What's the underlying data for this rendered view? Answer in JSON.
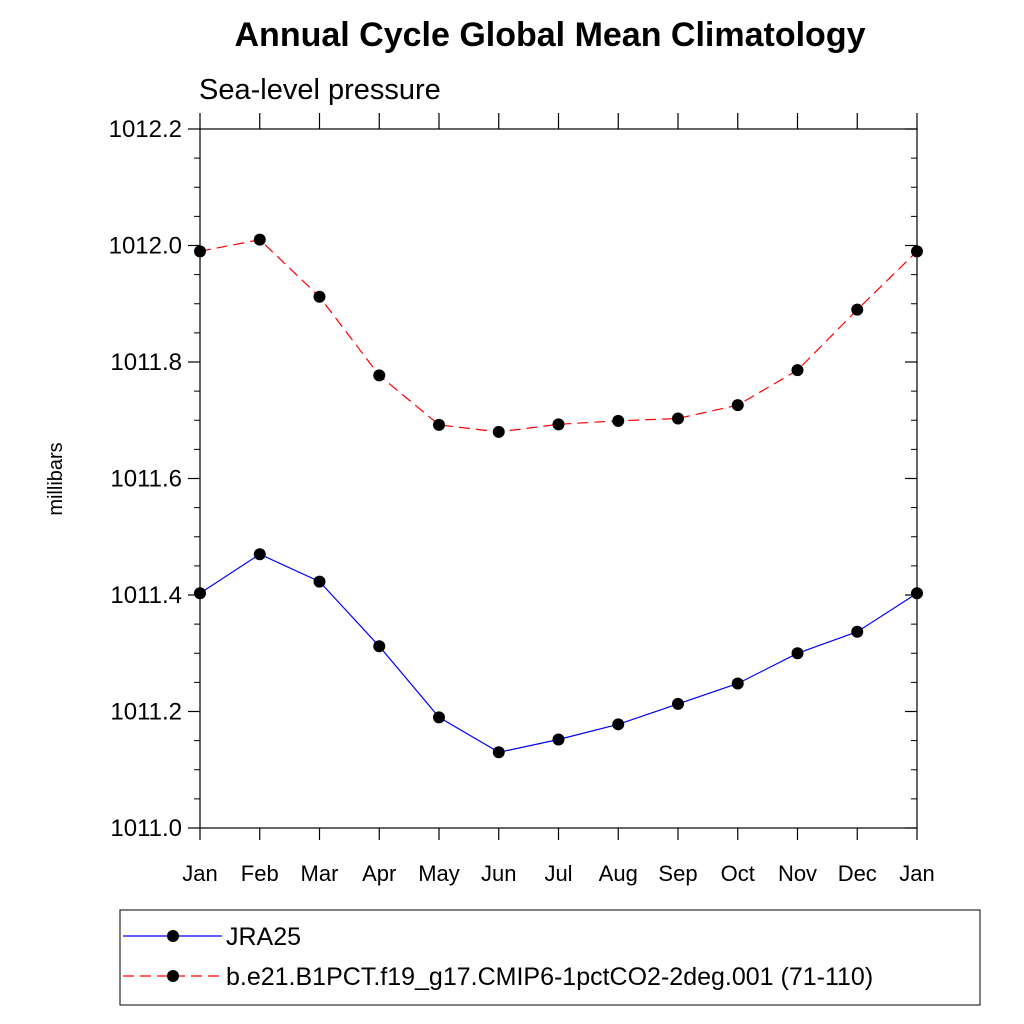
{
  "chart_data": {
    "type": "line",
    "title": "Annual Cycle Global Mean Climatology",
    "subtitle": "Sea-level pressure",
    "xlabel": "",
    "ylabel": "millibars",
    "categories": [
      "Jan",
      "Feb",
      "Mar",
      "Apr",
      "May",
      "Jun",
      "Jul",
      "Aug",
      "Sep",
      "Oct",
      "Nov",
      "Dec",
      "Jan"
    ],
    "ylim": [
      1011.0,
      1012.2
    ],
    "yticks": [
      "1011.0",
      "1011.2",
      "1011.4",
      "1011.6",
      "1011.8",
      "1012.0",
      "1012.2"
    ],
    "grid": false,
    "legend_position": "bottom",
    "series": [
      {
        "name": "JRA25",
        "color": "#0000ff",
        "line_style": "solid",
        "marker": "filled-circle",
        "values": [
          1011.403,
          1011.47,
          1011.423,
          1011.312,
          1011.19,
          1011.13,
          1011.152,
          1011.178,
          1011.213,
          1011.248,
          1011.3,
          1011.337,
          1011.403
        ]
      },
      {
        "name": "b.e21.B1PCT.f19_g17.CMIP6-1pctCO2-2deg.001 (71-110)",
        "color": "#ff0000",
        "line_style": "dashed",
        "marker": "filled-circle",
        "values": [
          1011.99,
          1012.01,
          1011.912,
          1011.777,
          1011.692,
          1011.68,
          1011.693,
          1011.699,
          1011.703,
          1011.726,
          1011.786,
          1011.89,
          1011.99
        ]
      }
    ]
  }
}
